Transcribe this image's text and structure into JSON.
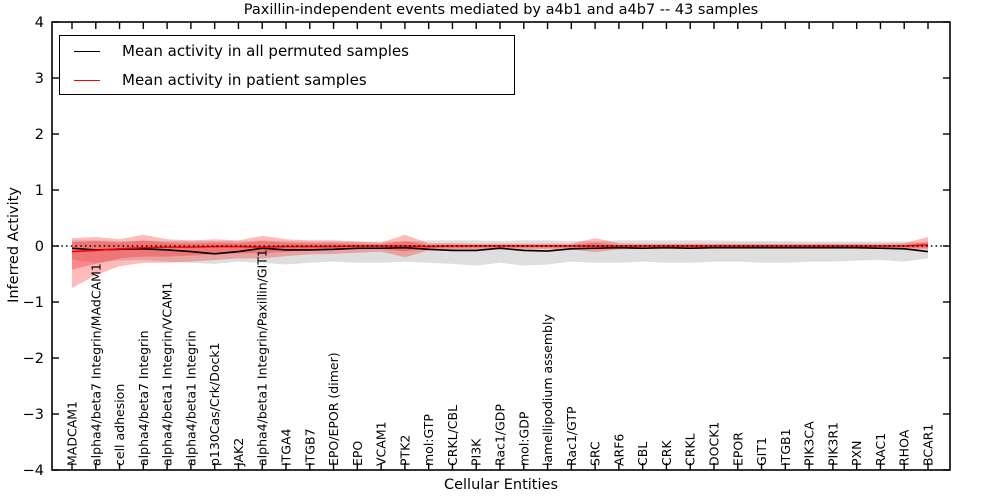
{
  "chart_data": {
    "type": "line",
    "title": "Paxillin-independent events mediated by a4b1 and a4b7 -- 43 samples",
    "xlabel": "Cellular Entities",
    "ylabel": "Inferred Activity",
    "ylim": [
      -4,
      4
    ],
    "yticks": [
      -4,
      -3,
      -2,
      -1,
      0,
      1,
      2,
      3,
      4
    ],
    "grid": false,
    "zero_reference_line": {
      "style": "dotted",
      "color": "#000000",
      "y": 0
    },
    "legend_position": "upper left",
    "categories": [
      "MADCAM1",
      "alpha4/beta7 Integrin/MAdCAM1",
      "cell adhesion",
      "alpha4/beta7 Integrin",
      "alpha4/beta1 Integrin/VCAM1",
      "alpha4/beta1 Integrin",
      "p130Cas/Crk/Dock1",
      "JAK2",
      "alpha4/beta1 Integrin/Paxillin/GIT1",
      "ITGA4",
      "ITGB7",
      "EPO/EPOR (dimer)",
      "EPO",
      "VCAM1",
      "PTK2",
      "mol:GTP",
      "CRKL/CBL",
      "PI3K",
      "Rac1/GDP",
      "mol:GDP",
      "lamellipodium assembly",
      "Rac1/GTP",
      "SRC",
      "ARF6",
      "CBL",
      "CRK",
      "CRKL",
      "DOCK1",
      "EPOR",
      "GIT1",
      "ITGB1",
      "PIK3CA",
      "PIK3R1",
      "PXN",
      "RAC1",
      "RHOA",
      "BCAR1"
    ],
    "series": [
      {
        "name": "Mean activity in all permuted samples",
        "color": "#000000",
        "values": [
          -0.04,
          -0.07,
          -0.06,
          -0.05,
          -0.07,
          -0.1,
          -0.14,
          -0.1,
          -0.04,
          -0.07,
          -0.07,
          -0.06,
          -0.04,
          -0.04,
          -0.03,
          -0.06,
          -0.08,
          -0.08,
          -0.04,
          -0.08,
          -0.09,
          -0.05,
          -0.04,
          -0.03,
          -0.04,
          -0.03,
          -0.04,
          -0.03,
          -0.03,
          -0.03,
          -0.03,
          -0.03,
          -0.03,
          -0.03,
          -0.04,
          -0.05,
          -0.1
        ]
      },
      {
        "name": "Mean activity in patient samples",
        "color": "#ff0000",
        "values": [
          -0.1,
          -0.08,
          -0.05,
          -0.03,
          -0.02,
          -0.02,
          -0.01,
          -0.01,
          -0.02,
          -0.01,
          -0.01,
          -0.01,
          0,
          0,
          0,
          -0.01,
          0,
          0,
          0,
          0,
          0,
          0,
          0,
          0,
          0,
          0,
          0,
          0,
          0,
          0,
          0,
          0,
          0,
          0,
          0,
          0,
          0.02
        ]
      }
    ],
    "bands": [
      {
        "name": "permuted-samples-band",
        "color": "rgba(0,0,0,0.13)",
        "upper": [
          0.1,
          0.1,
          0.09,
          0.09,
          0.09,
          0.09,
          0.09,
          0.09,
          0.1,
          0.09,
          0.08,
          0.08,
          0.08,
          0.08,
          0.08,
          0.1,
          0.1,
          0.1,
          0.09,
          0.1,
          0.1,
          0.09,
          0.08,
          0.1,
          0.1,
          0.1,
          0.1,
          0.1,
          0.09,
          0.09,
          0.09,
          0.08,
          0.08,
          0.08,
          0.08,
          0.08,
          0.05
        ],
        "lower": [
          -0.24,
          -0.3,
          -0.26,
          -0.25,
          -0.28,
          -0.3,
          -0.32,
          -0.28,
          -0.3,
          -0.33,
          -0.3,
          -0.28,
          -0.3,
          -0.3,
          -0.28,
          -0.3,
          -0.32,
          -0.35,
          -0.3,
          -0.35,
          -0.33,
          -0.28,
          -0.3,
          -0.3,
          -0.28,
          -0.3,
          -0.3,
          -0.28,
          -0.28,
          -0.3,
          -0.3,
          -0.28,
          -0.28,
          -0.26,
          -0.25,
          -0.28,
          -0.22
        ]
      },
      {
        "name": "patient-samples-band-outer",
        "color": "rgba(255,0,0,0.27)",
        "upper": [
          0.14,
          0.16,
          0.12,
          0.2,
          0.12,
          0.1,
          0.12,
          0.1,
          0.18,
          0.12,
          0.1,
          0.1,
          0.08,
          0.06,
          0.2,
          0.05,
          0.05,
          0.04,
          0.04,
          0.04,
          0.04,
          0.04,
          0.14,
          0.05,
          0.04,
          0.04,
          0.04,
          0.04,
          0.04,
          0.04,
          0.04,
          0.04,
          0.04,
          0.04,
          0.04,
          0.05,
          0.16
        ],
        "lower": [
          -0.75,
          -0.52,
          -0.36,
          -0.3,
          -0.3,
          -0.28,
          -0.25,
          -0.22,
          -0.22,
          -0.18,
          -0.15,
          -0.14,
          -0.12,
          -0.1,
          -0.2,
          -0.08,
          -0.07,
          -0.06,
          -0.06,
          -0.06,
          -0.06,
          -0.06,
          -0.11,
          -0.06,
          -0.05,
          -0.05,
          -0.05,
          -0.05,
          -0.05,
          -0.05,
          -0.05,
          -0.05,
          -0.05,
          -0.05,
          -0.05,
          -0.06,
          -0.06
        ]
      },
      {
        "name": "patient-samples-band-inner",
        "color": "rgba(255,0,0,0.27)",
        "upper": [
          0.07,
          0.09,
          0.06,
          0.1,
          0.06,
          0.05,
          0.06,
          0.05,
          0.09,
          0.06,
          0.05,
          0.05,
          0.04,
          0.03,
          0.09,
          0.02,
          0.02,
          0.02,
          0.02,
          0.02,
          0.02,
          0.02,
          0.06,
          0.02,
          0.02,
          0.02,
          0.02,
          0.02,
          0.02,
          0.02,
          0.02,
          0.02,
          0.02,
          0.02,
          0.02,
          0.02,
          0.08
        ],
        "lower": [
          -0.42,
          -0.32,
          -0.22,
          -0.19,
          -0.19,
          -0.17,
          -0.15,
          -0.13,
          -0.13,
          -0.1,
          -0.08,
          -0.07,
          -0.06,
          -0.05,
          -0.1,
          -0.04,
          -0.04,
          -0.03,
          -0.03,
          -0.03,
          -0.03,
          -0.03,
          -0.06,
          -0.03,
          -0.03,
          -0.03,
          -0.03,
          -0.03,
          -0.03,
          -0.03,
          -0.03,
          -0.03,
          -0.03,
          -0.03,
          -0.03,
          -0.03,
          -0.04
        ]
      }
    ]
  }
}
